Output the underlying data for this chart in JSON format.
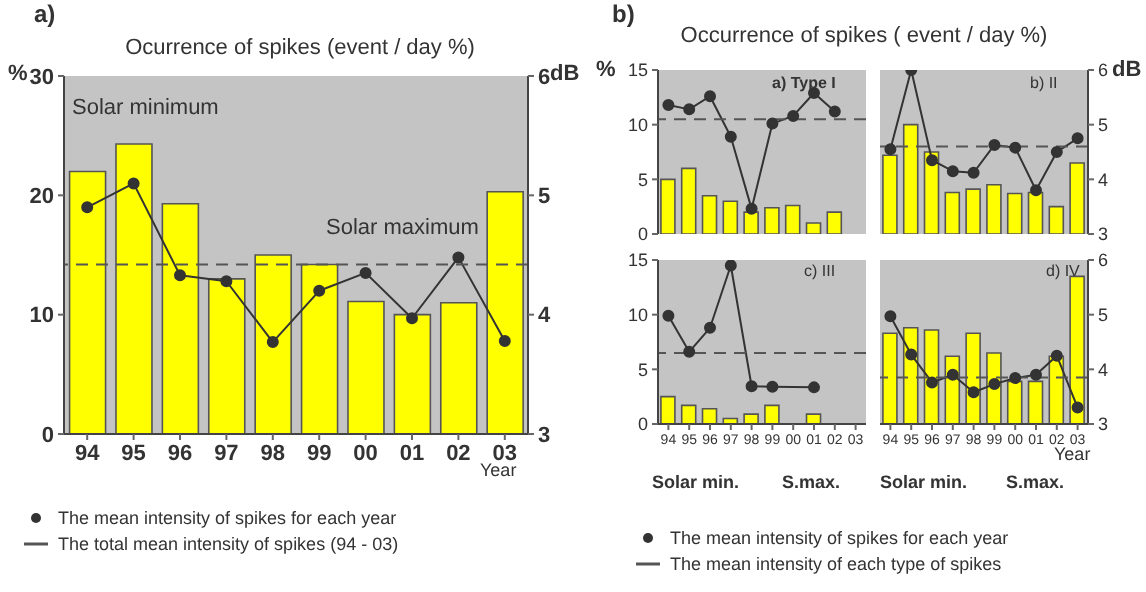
{
  "chart_data": [
    {
      "type": "bar",
      "title": "Ocurrence of spikes (event / day %)",
      "xlabel": "Year",
      "ylabel": "%",
      "y2label": "dB",
      "annotations": [
        "a)",
        "Solar minimum",
        "Solar maximum"
      ],
      "categories": [
        "94",
        "95",
        "96",
        "97",
        "98",
        "99",
        "00",
        "01",
        "02",
        "03"
      ],
      "series": [
        {
          "color": "#ffff00",
          "values": [
            22,
            24.3,
            19.3,
            13,
            15,
            14.2,
            11.1,
            10,
            11,
            20.3
          ]
        },
        {
          "type": "line",
          "axis": "y2",
          "name": "The mean intensity of spikes for each year",
          "color": "#333333",
          "values": [
            4.9,
            5.1,
            4.33,
            4.28,
            3.77,
            4.2,
            4.35,
            3.97,
            4.48,
            3.78
          ]
        }
      ],
      "ylim": [
        0,
        30
      ],
      "yticks": [
        0,
        10,
        20,
        30
      ],
      "y2lim": [
        3,
        6
      ],
      "y2ticks": [
        3,
        4,
        5,
        6
      ],
      "ref_lines": [
        {
          "axis": "y2",
          "value": 4.42,
          "label": "The total mean intensity of spikes (94 - 03)",
          "color": "#555555",
          "line_style": "dashed"
        }
      ],
      "marker": "circle",
      "legend": "bottom"
    },
    {
      "type": "bar",
      "title": "Occurrence of spikes ( event / day %)",
      "ylabel": "%",
      "annotations": [
        "b)",
        "a) Type I"
      ],
      "categories": [
        "94",
        "95",
        "96",
        "97",
        "98",
        "99",
        "00",
        "01",
        "02",
        "03"
      ],
      "series": [
        {
          "color": "#ffff00",
          "values": [
            5,
            6,
            3.5,
            3,
            2,
            2.4,
            2.6,
            1,
            2,
            null
          ]
        },
        {
          "type": "line",
          "axis": "y2",
          "name": "The mean intensity of spikes for each year",
          "color": "#333333",
          "values": [
            5.36,
            5.28,
            5.52,
            4.78,
            3.46,
            5.02,
            5.16,
            5.58,
            5.24,
            null
          ]
        }
      ],
      "ylim": [
        0,
        15
      ],
      "yticks": [
        0,
        5,
        10,
        15
      ],
      "y2lim": [
        3,
        6
      ],
      "ref_lines": [
        {
          "axis": "y2",
          "value": 5.1,
          "label": "The mean intensity of each type of spikes",
          "color": "#555555",
          "line_style": "dashed"
        }
      ],
      "marker": "circle",
      "legend": "bottom",
      "tick_labels": "y"
    },
    {
      "type": "bar",
      "y2label": "dB",
      "annotations": [
        "b) II"
      ],
      "categories": [
        "94",
        "95",
        "96",
        "97",
        "98",
        "99",
        "00",
        "01",
        "02",
        "03"
      ],
      "series": [
        {
          "color": "#ffff00",
          "values": [
            7.2,
            10,
            7.5,
            3.8,
            4.1,
            4.5,
            3.7,
            3.8,
            2.5,
            6.5
          ]
        },
        {
          "type": "line",
          "axis": "y2",
          "color": "#333333",
          "values": [
            4.55,
            6,
            4.35,
            4.15,
            4.12,
            4.63,
            4.58,
            3.8,
            4.5,
            4.75
          ]
        }
      ],
      "ylim": [
        0,
        15
      ],
      "y2lim": [
        3,
        6
      ],
      "y2ticks": [
        3,
        4,
        5,
        6
      ],
      "ref_lines": [
        {
          "axis": "y2",
          "value": 4.6,
          "color": "#555555",
          "line_style": "dashed"
        }
      ],
      "marker": "circle",
      "tick_labels": "y"
    },
    {
      "type": "bar",
      "annotations": [
        "c) III",
        "Solar min.",
        "S.max."
      ],
      "categories": [
        "94",
        "95",
        "96",
        "97",
        "98",
        "99",
        "00",
        "01",
        "02",
        "03"
      ],
      "series": [
        {
          "color": "#ffff00",
          "values": [
            2.5,
            1.7,
            1.4,
            0.5,
            0.9,
            1.7,
            null,
            0.9,
            null,
            null
          ]
        },
        {
          "type": "line",
          "axis": "y2",
          "color": "#333333",
          "values": [
            4.98,
            4.32,
            4.76,
            5.9,
            3.69,
            3.68,
            null,
            3.67,
            null,
            null
          ]
        }
      ],
      "ylim": [
        0,
        15
      ],
      "yticks": [
        0,
        5,
        10,
        15
      ],
      "y2lim": [
        3,
        6
      ],
      "ref_lines": [
        {
          "axis": "y2",
          "value": 4.3,
          "color": "#555555",
          "line_style": "dashed"
        }
      ],
      "marker": "circle"
    },
    {
      "type": "bar",
      "xlabel": "Year",
      "annotations": [
        "d) IV",
        "Solar min.",
        "S.max."
      ],
      "categories": [
        "94",
        "95",
        "96",
        "97",
        "98",
        "99",
        "00",
        "01",
        "02",
        "03"
      ],
      "series": [
        {
          "color": "#ffff00",
          "values": [
            8.3,
            8.8,
            8.6,
            6.2,
            8.3,
            6.5,
            3.9,
            3.9,
            6.2,
            13.5
          ]
        },
        {
          "type": "line",
          "axis": "y2",
          "color": "#333333",
          "values": [
            4.97,
            4.27,
            3.76,
            3.9,
            3.58,
            3.73,
            3.84,
            3.9,
            4.25,
            3.3
          ]
        }
      ],
      "ylim": [
        0,
        15
      ],
      "y2lim": [
        3,
        6
      ],
      "y2ticks": [
        3,
        4,
        5,
        6
      ],
      "ref_lines": [
        {
          "axis": "y2",
          "value": 3.85,
          "color": "#555555",
          "line_style": "dashed"
        }
      ],
      "marker": "circle"
    }
  ]
}
